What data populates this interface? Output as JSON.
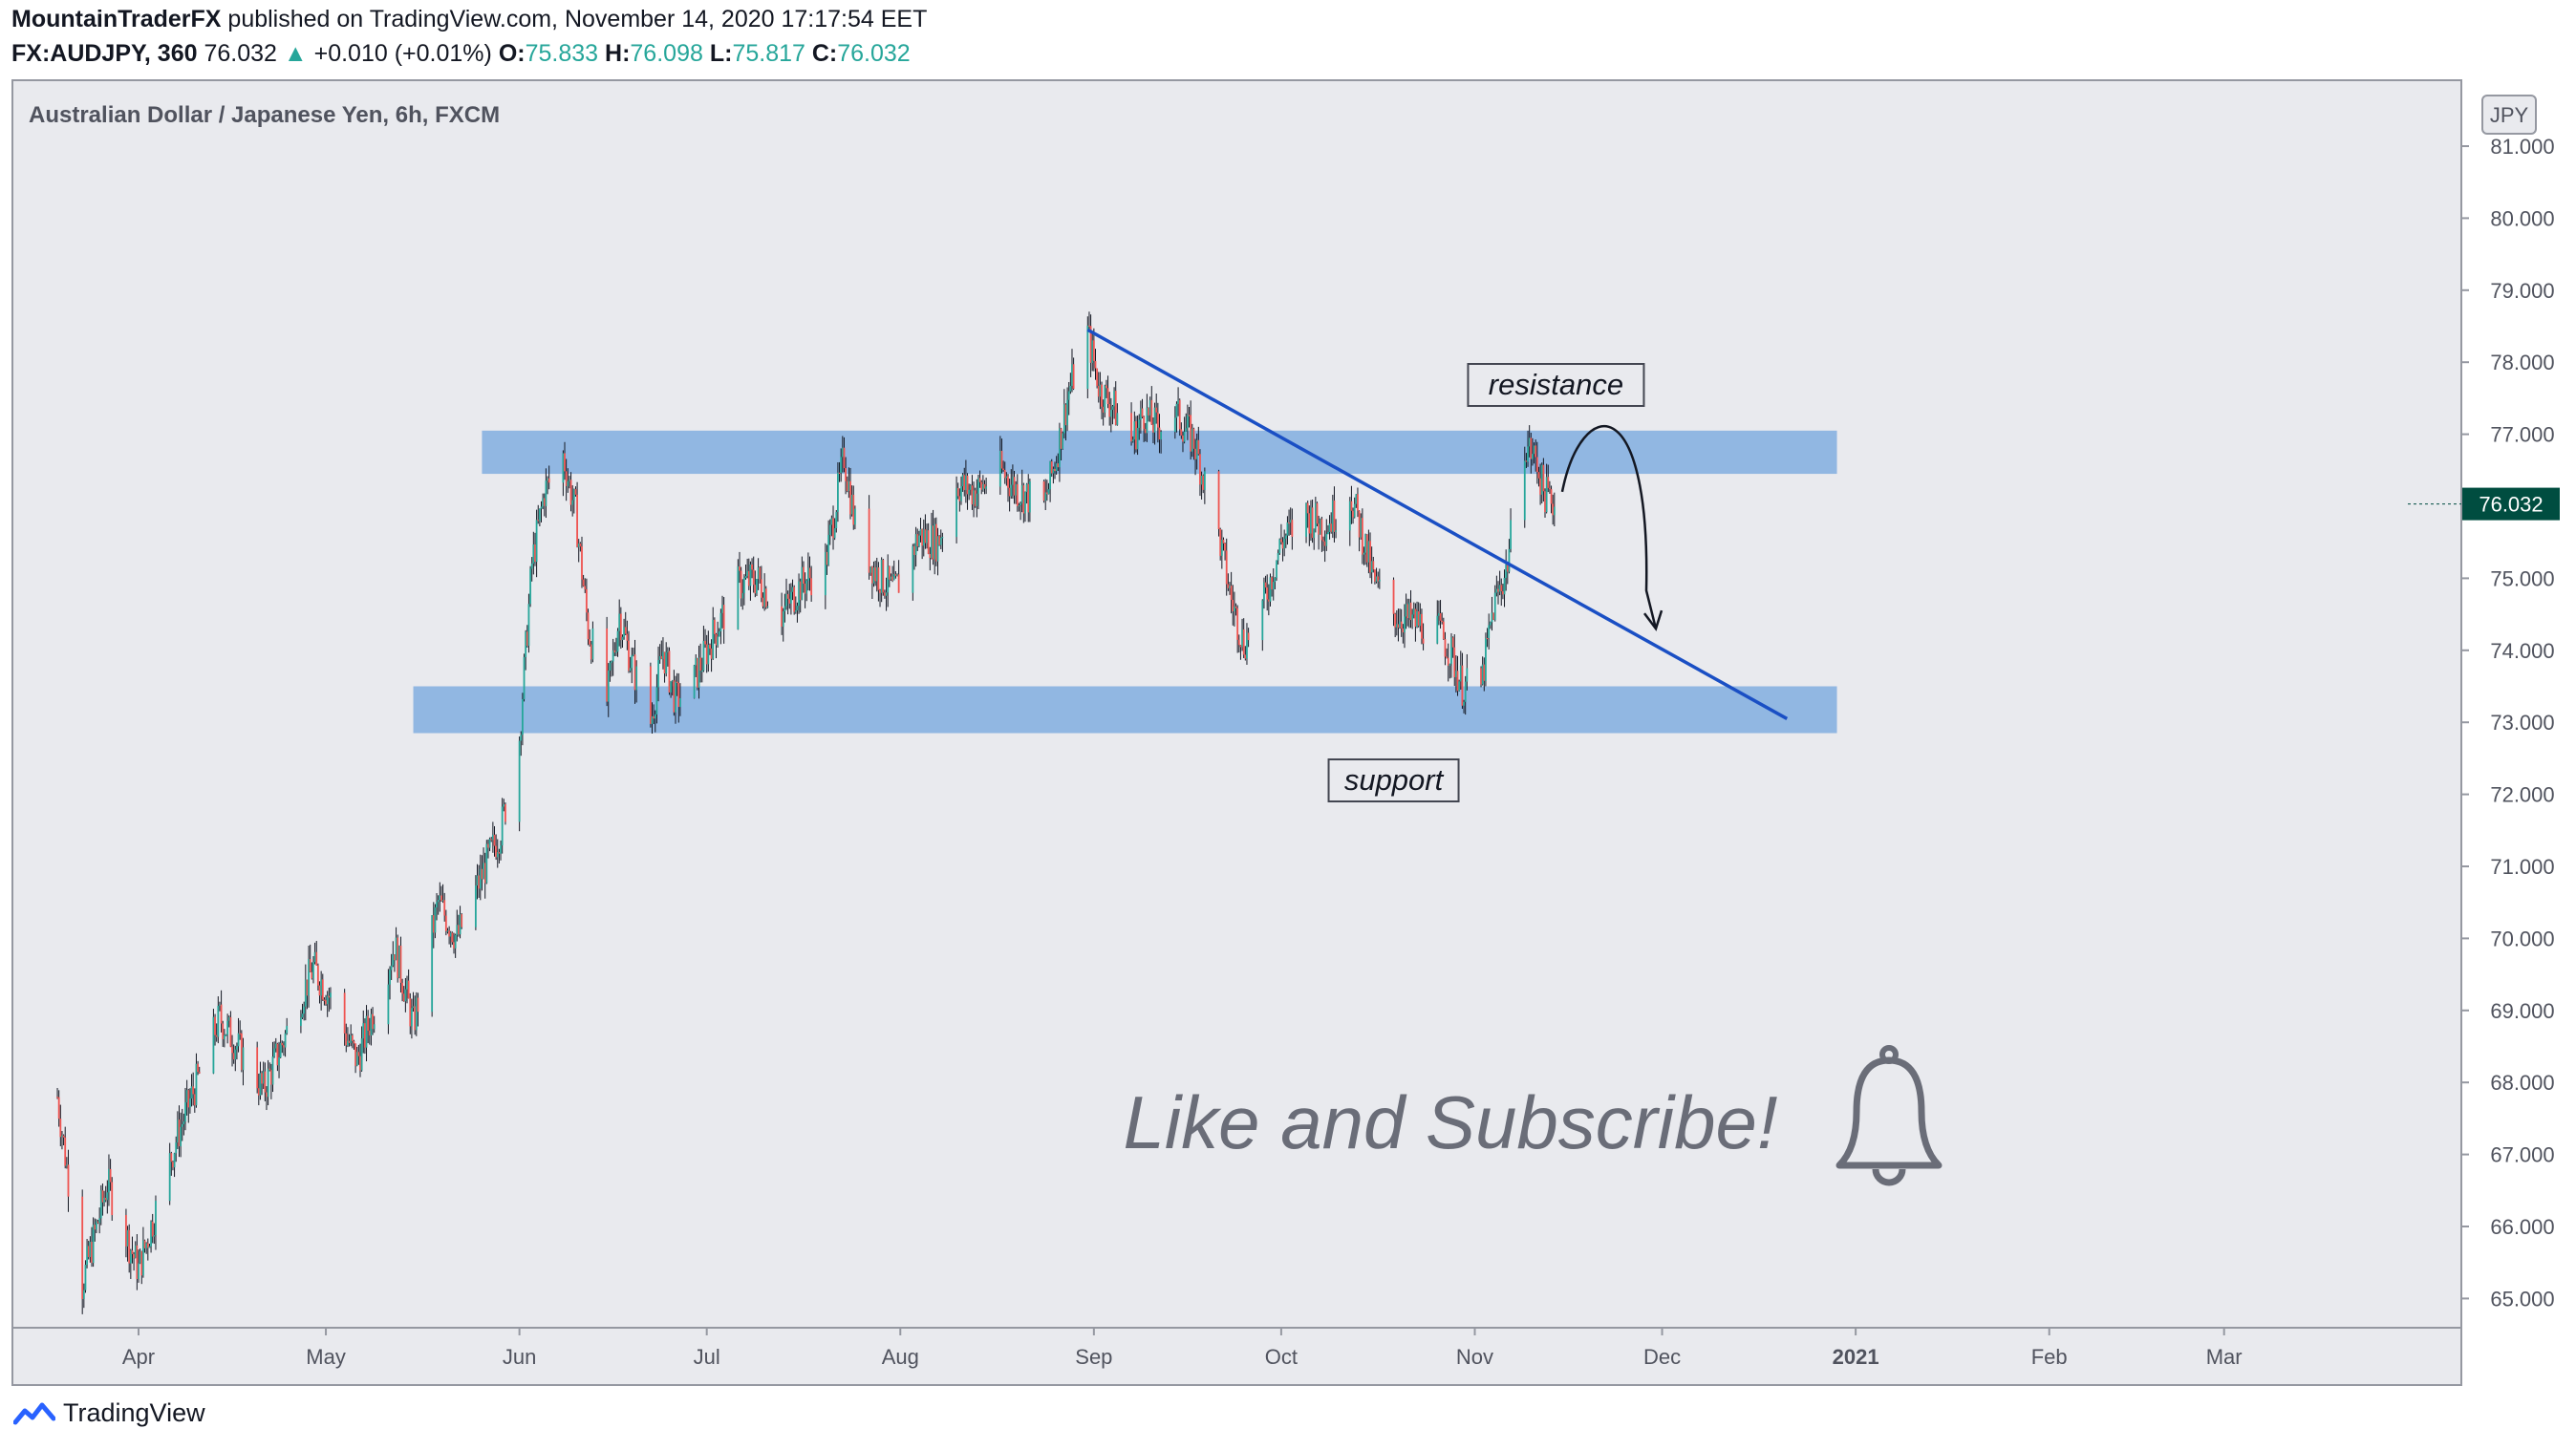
{
  "header": {
    "author": "MountainTraderFX",
    "published_text": " published on TradingView.com, November 14, 2020 17:17:54 EET",
    "symbol": "FX:AUDJPY, 360",
    "last_price": "76.032",
    "change_arrow": "▲",
    "change": "+0.010 (+0.01%)",
    "o_label": "O:",
    "o_value": "75.833",
    "h_label": "H:",
    "h_value": "76.098",
    "l_label": "L:",
    "l_value": "75.817",
    "c_label": "C:",
    "c_value": "76.032"
  },
  "chart_data": {
    "type": "candlestick",
    "title": "Australian Dollar / Japanese Yen, 6h, FXCM",
    "currency": "JPY",
    "ylim": [
      64.6,
      81.5
    ],
    "y_ticks": [
      "81.000",
      "80.000",
      "79.000",
      "78.000",
      "77.000",
      "76.000",
      "75.000",
      "74.000",
      "73.000",
      "72.000",
      "71.000",
      "70.000",
      "69.000",
      "68.000",
      "67.000",
      "66.000",
      "65.000"
    ],
    "x_ticks": [
      "Apr",
      "May",
      "Jun",
      "Jul",
      "Aug",
      "Sep",
      "Oct",
      "Nov",
      "Dec",
      "2021",
      "Feb",
      "Mar"
    ],
    "last_price_label": "76.032",
    "price_path": [
      [
        "2020-03-19",
        67.8
      ],
      [
        "2020-03-23",
        65.2
      ],
      [
        "2020-03-27",
        66.6
      ],
      [
        "2020-04-01",
        65.4
      ],
      [
        "2020-04-07",
        67.2
      ],
      [
        "2020-04-14",
        68.9
      ],
      [
        "2020-04-21",
        67.9
      ],
      [
        "2020-04-29",
        69.6
      ],
      [
        "2020-05-01",
        69.3
      ],
      [
        "2020-05-06",
        68.3
      ],
      [
        "2020-05-12",
        69.9
      ],
      [
        "2020-05-15",
        68.8
      ],
      [
        "2020-05-19",
        70.5
      ],
      [
        "2020-05-22",
        70.0
      ],
      [
        "2020-05-27",
        71.1
      ],
      [
        "2020-05-29",
        71.5
      ],
      [
        "2020-06-01",
        72.8
      ],
      [
        "2020-06-03",
        75.2
      ],
      [
        "2020-06-05",
        76.2
      ],
      [
        "2020-06-08",
        76.7
      ],
      [
        "2020-06-10",
        75.9
      ],
      [
        "2020-06-12",
        74.3
      ],
      [
        "2020-06-15",
        73.3
      ],
      [
        "2020-06-17",
        74.5
      ],
      [
        "2020-06-19",
        73.8
      ],
      [
        "2020-06-22",
        73.0
      ],
      [
        "2020-06-24",
        74.0
      ],
      [
        "2020-06-26",
        73.3
      ],
      [
        "2020-06-29",
        73.6
      ],
      [
        "2020-07-02",
        74.2
      ],
      [
        "2020-07-06",
        74.9
      ],
      [
        "2020-07-09",
        75.0
      ],
      [
        "2020-07-13",
        74.5
      ],
      [
        "2020-07-16",
        74.9
      ],
      [
        "2020-07-20",
        75.2
      ],
      [
        "2020-07-22",
        76.2
      ],
      [
        "2020-07-23",
        76.7
      ],
      [
        "2020-07-25",
        75.6
      ],
      [
        "2020-07-28",
        75.1
      ],
      [
        "2020-07-31",
        74.8
      ],
      [
        "2020-08-04",
        75.6
      ],
      [
        "2020-08-07",
        75.5
      ],
      [
        "2020-08-10",
        76.3
      ],
      [
        "2020-08-13",
        76.2
      ],
      [
        "2020-08-17",
        76.5
      ],
      [
        "2020-08-20",
        76.2
      ],
      [
        "2020-08-24",
        76.0
      ],
      [
        "2020-08-26",
        76.7
      ],
      [
        "2020-08-28",
        77.6
      ],
      [
        "2020-08-31",
        78.4
      ],
      [
        "2020-09-02",
        77.6
      ],
      [
        "2020-09-04",
        77.4
      ],
      [
        "2020-09-07",
        76.9
      ],
      [
        "2020-09-09",
        77.3
      ],
      [
        "2020-09-11",
        77.1
      ],
      [
        "2020-09-14",
        77.3
      ],
      [
        "2020-09-17",
        76.9
      ],
      [
        "2020-09-21",
        75.6
      ],
      [
        "2020-09-23",
        74.7
      ],
      [
        "2020-09-25",
        74.1
      ],
      [
        "2020-09-28",
        74.6
      ],
      [
        "2020-10-01",
        75.5
      ],
      [
        "2020-10-05",
        75.9
      ],
      [
        "2020-10-08",
        75.7
      ],
      [
        "2020-10-12",
        76.2
      ],
      [
        "2020-10-14",
        75.6
      ],
      [
        "2020-10-16",
        74.9
      ],
      [
        "2020-10-19",
        74.5
      ],
      [
        "2020-10-22",
        74.4
      ],
      [
        "2020-10-26",
        74.3
      ],
      [
        "2020-10-28",
        74.0
      ],
      [
        "2020-10-30",
        73.5
      ],
      [
        "2020-11-02",
        73.5
      ],
      [
        "2020-11-04",
        74.6
      ],
      [
        "2020-11-06",
        75.1
      ],
      [
        "2020-11-09",
        76.9
      ],
      [
        "2020-11-11",
        76.6
      ],
      [
        "2020-11-12",
        76.2
      ],
      [
        "2020-11-14",
        76.032
      ]
    ],
    "zones": [
      {
        "from_date": "2020-05-26",
        "to_date": "2020-12-29",
        "low": 76.45,
        "high": 77.05,
        "label": "resistance"
      },
      {
        "from_date": "2020-05-15",
        "to_date": "2020-12-29",
        "low": 72.85,
        "high": 73.5,
        "label": "support"
      }
    ],
    "trendline": {
      "from": [
        "2020-08-31",
        78.45
      ],
      "to": [
        "2020-12-21",
        73.05
      ]
    },
    "projection_arrow": {
      "from": [
        "2020-11-15",
        76.2
      ],
      "peak": [
        "2020-11-20",
        77.0
      ],
      "to": [
        "2020-11-30",
        74.3
      ]
    },
    "annotations": [
      "resistance",
      "support"
    ],
    "overlay_text": "Like and Subscribe!",
    "grid": false,
    "colors": {
      "up": "#26a69a",
      "down": "#ef5350",
      "zone": "#7aaadf",
      "trendline": "#1a4fc4",
      "background": "#e9eaee",
      "price_tag": "#004d40"
    }
  },
  "footer": {
    "brand": "TradingView"
  }
}
